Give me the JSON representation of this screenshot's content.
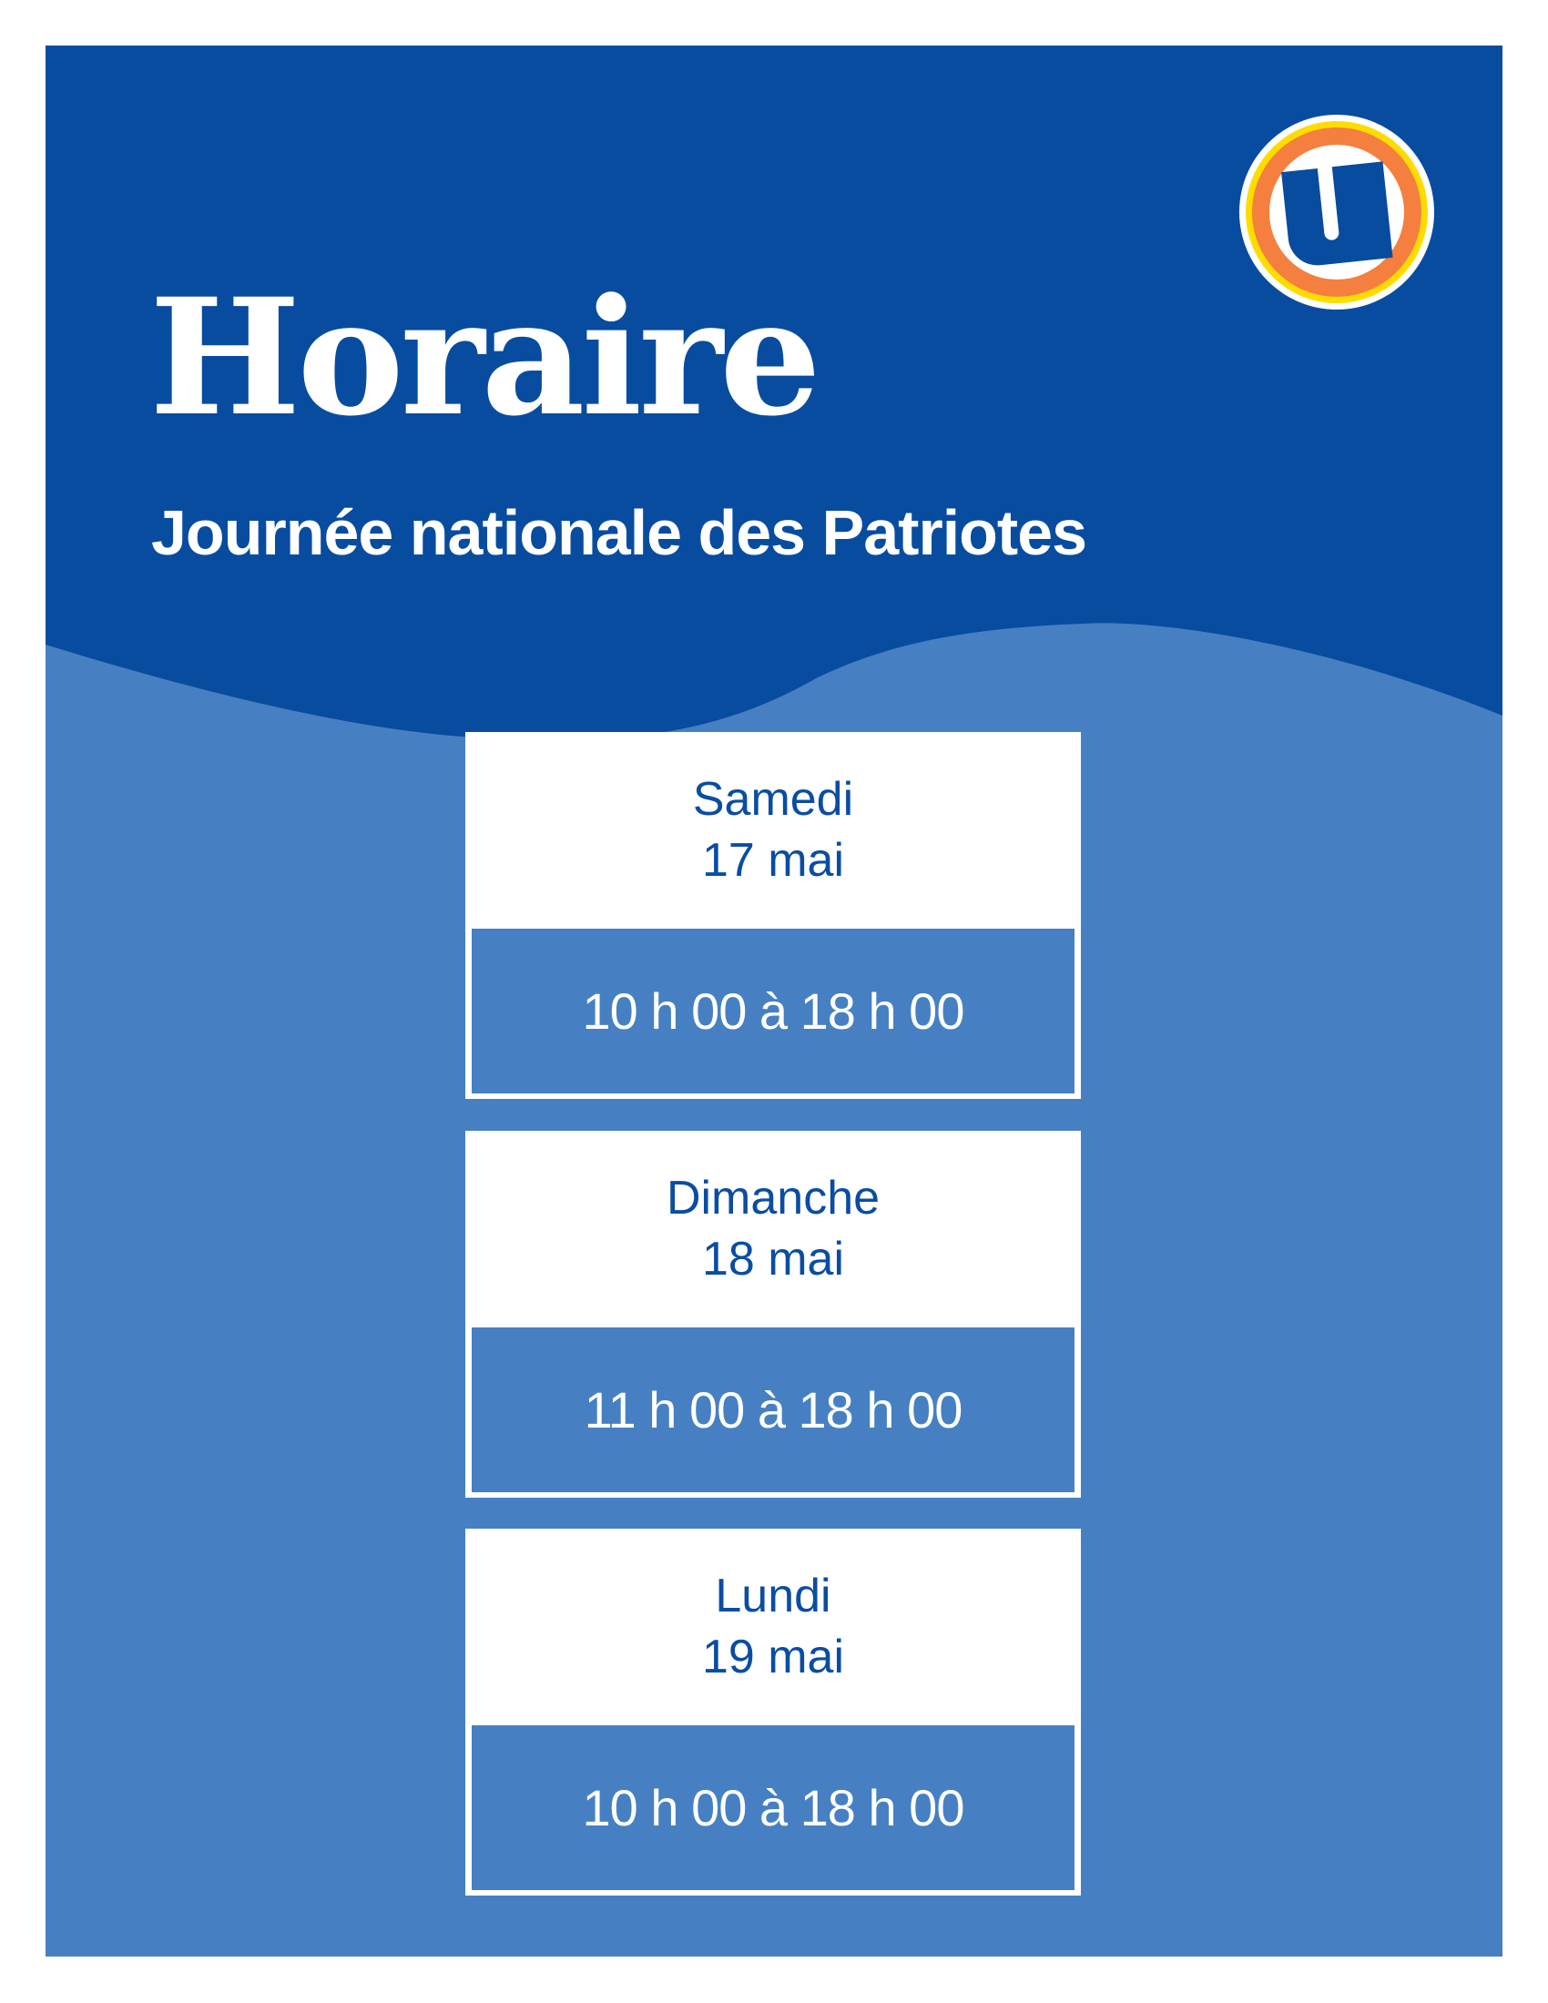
{
  "colors": {
    "dark_blue": "#084ca0",
    "light_blue": "#4680c2",
    "white": "#ffffff",
    "logo_orange": "#f47f3e",
    "logo_yellow": "#ffdc00"
  },
  "logo": {
    "letter": "U",
    "icon": "uniprix-u-logo"
  },
  "header": {
    "title": "Horaire",
    "subtitle": "Journée nationale des Patriotes"
  },
  "schedule": [
    {
      "day": "Samedi",
      "date": "17 mai",
      "hours": "10 h 00 à 18 h 00"
    },
    {
      "day": "Dimanche",
      "date": "18 mai",
      "hours": "11 h 00 à 18 h 00"
    },
    {
      "day": "Lundi",
      "date": "19 mai",
      "hours": "10 h 00 à 18 h 00"
    }
  ]
}
